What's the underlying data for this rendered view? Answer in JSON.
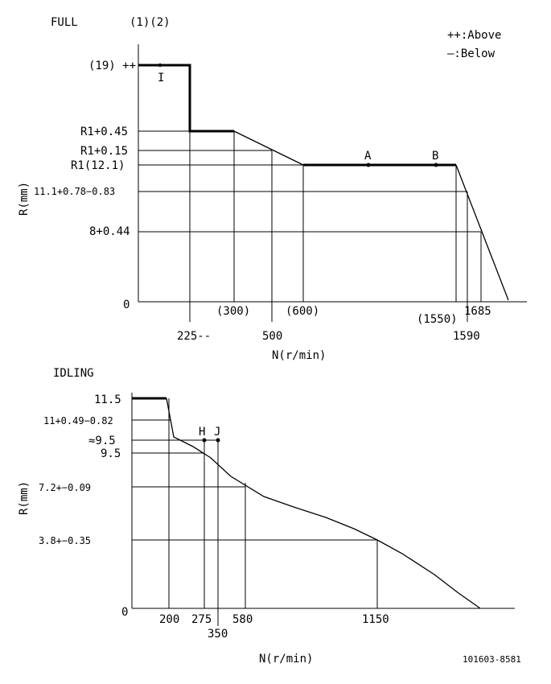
{
  "top": {
    "title": "FULL",
    "marks": "(1)(2)",
    "legend_above": "++:Above",
    "legend_below": "—:Below",
    "ylabel": "R(mm)",
    "xlabel": "N(r/min)",
    "origin": "0",
    "y_ticks": [
      "(19) ++",
      "R1+0.45",
      "R1+0.15",
      "R1(12.1)",
      "11.1+0.78−0.83",
      "8+0.44"
    ],
    "x_ticks_upper": [
      "(300)",
      "(600)",
      "(1550)",
      "1685"
    ],
    "x_ticks_lower": [
      "225--",
      "500",
      "1590"
    ],
    "point_a": "A",
    "point_b": "B",
    "marker": "I"
  },
  "bottom": {
    "title": "IDLING",
    "ylabel": "R(mm)",
    "xlabel": "N(r/min)",
    "origin": "0",
    "y_ticks": [
      "11.5",
      "11+0.49−0.82",
      "≈9.5",
      "9.5",
      "7.2+−0.09",
      "3.8+−0.35"
    ],
    "x_ticks": [
      "200",
      "275",
      "580",
      "1150"
    ],
    "x_tick_below": "350",
    "point_h": "H",
    "point_j": "J"
  },
  "footer_code": "101603-8581"
}
